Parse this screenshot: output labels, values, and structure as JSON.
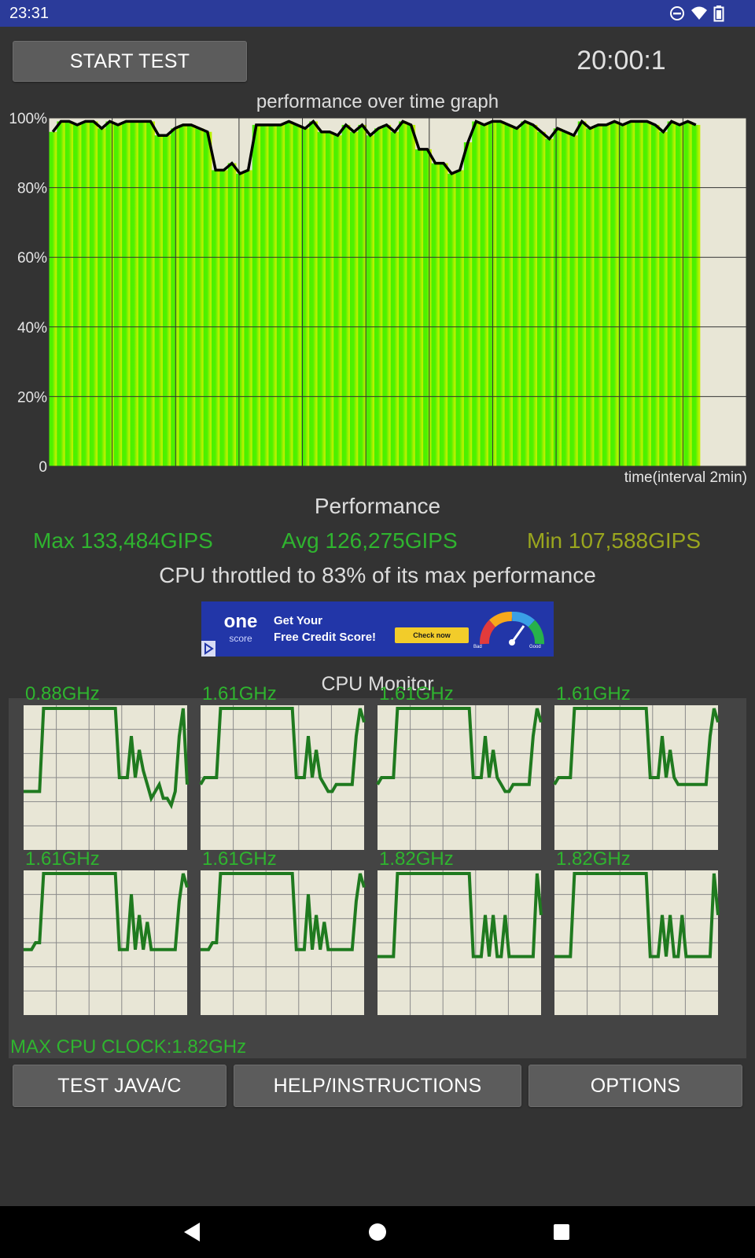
{
  "status_bar": {
    "time": "23:31",
    "icons": [
      "do-not-disturb-icon",
      "wifi-icon",
      "battery-icon"
    ]
  },
  "toolbar": {
    "start_label": "START TEST",
    "timer": "20:00:1"
  },
  "graph": {
    "title": "performance over time graph",
    "y_ticks": [
      "100%",
      "80%",
      "60%",
      "40%",
      "20%",
      "0"
    ],
    "x_label": "time(interval 2min)",
    "y_range": [
      0,
      100
    ],
    "samples": 80,
    "filled_samples": 80,
    "values": [
      96,
      99,
      99,
      98,
      99,
      99,
      97,
      99,
      98,
      99,
      99,
      99,
      99,
      95,
      95,
      97,
      98,
      98,
      97,
      96,
      85,
      85,
      87,
      84,
      85,
      98,
      98,
      98,
      98,
      99,
      98,
      97,
      99,
      96,
      96,
      95,
      98,
      96,
      98,
      95,
      97,
      98,
      96,
      99,
      98,
      91,
      91,
      87,
      87,
      84,
      85,
      93,
      99,
      98,
      99,
      99,
      98,
      97,
      99,
      98,
      96,
      94,
      97,
      96,
      95,
      99,
      97,
      98,
      98,
      99,
      98,
      99,
      99,
      99,
      98,
      96,
      99,
      98,
      99,
      98
    ]
  },
  "performance": {
    "heading": "Performance",
    "max": "Max 133,484GIPS",
    "avg": "Avg 126,275GIPS",
    "min": "Min 107,588GIPS",
    "throttle": "CPU throttled to 83% of its max performance"
  },
  "ad": {
    "brand": "one",
    "brand_sub": "score",
    "line1": "Get Your",
    "line2": "Free Credit Score!",
    "cta": "Check now",
    "gauge_left": "Bad",
    "gauge_right": "Good"
  },
  "cpu_monitor": {
    "heading": "CPU Monitor",
    "cores": [
      {
        "freq": "0.88GHz",
        "values": [
          0.4,
          0.4,
          0.4,
          0.4,
          0.4,
          1,
          1,
          1,
          1,
          1,
          1,
          1,
          1,
          1,
          1,
          1,
          1,
          1,
          1,
          1,
          1,
          1,
          1,
          1,
          0.5,
          0.5,
          0.5,
          0.8,
          0.5,
          0.7,
          0.55,
          0.45,
          0.35,
          0.4,
          0.45,
          0.35,
          0.35,
          0.3,
          0.4,
          0.8,
          1,
          0.45
        ]
      },
      {
        "freq": "1.61GHz",
        "values": [
          0.45,
          0.5,
          0.5,
          0.5,
          0.5,
          1,
          1,
          1,
          1,
          1,
          1,
          1,
          1,
          1,
          1,
          1,
          1,
          1,
          1,
          1,
          1,
          1,
          1,
          1,
          0.5,
          0.5,
          0.5,
          0.8,
          0.5,
          0.7,
          0.5,
          0.45,
          0.4,
          0.4,
          0.45,
          0.45,
          0.45,
          0.45,
          0.45,
          0.8,
          1,
          0.9
        ]
      },
      {
        "freq": "1.61GHz",
        "values": [
          0.45,
          0.5,
          0.5,
          0.5,
          0.5,
          1,
          1,
          1,
          1,
          1,
          1,
          1,
          1,
          1,
          1,
          1,
          1,
          1,
          1,
          1,
          1,
          1,
          1,
          1,
          0.5,
          0.5,
          0.5,
          0.8,
          0.5,
          0.7,
          0.5,
          0.45,
          0.4,
          0.4,
          0.45,
          0.45,
          0.45,
          0.45,
          0.45,
          0.8,
          1,
          0.9
        ]
      },
      {
        "freq": "1.61GHz",
        "values": [
          0.45,
          0.5,
          0.5,
          0.5,
          0.5,
          1,
          1,
          1,
          1,
          1,
          1,
          1,
          1,
          1,
          1,
          1,
          1,
          1,
          1,
          1,
          1,
          1,
          1,
          1,
          0.5,
          0.5,
          0.5,
          0.8,
          0.5,
          0.7,
          0.5,
          0.45,
          0.45,
          0.45,
          0.45,
          0.45,
          0.45,
          0.45,
          0.45,
          0.8,
          1,
          0.9
        ]
      },
      {
        "freq": "1.61GHz",
        "values": [
          0.45,
          0.45,
          0.45,
          0.5,
          0.5,
          1,
          1,
          1,
          1,
          1,
          1,
          1,
          1,
          1,
          1,
          1,
          1,
          1,
          1,
          1,
          1,
          1,
          1,
          1,
          0.45,
          0.45,
          0.45,
          0.85,
          0.45,
          0.7,
          0.45,
          0.65,
          0.45,
          0.45,
          0.45,
          0.45,
          0.45,
          0.45,
          0.45,
          0.8,
          1,
          0.9
        ]
      },
      {
        "freq": "1.61GHz",
        "values": [
          0.45,
          0.45,
          0.45,
          0.5,
          0.5,
          1,
          1,
          1,
          1,
          1,
          1,
          1,
          1,
          1,
          1,
          1,
          1,
          1,
          1,
          1,
          1,
          1,
          1,
          1,
          0.45,
          0.45,
          0.45,
          0.85,
          0.45,
          0.7,
          0.45,
          0.65,
          0.45,
          0.45,
          0.45,
          0.45,
          0.45,
          0.45,
          0.45,
          0.8,
          1,
          0.9
        ]
      },
      {
        "freq": "1.82GHz",
        "values": [
          0.4,
          0.4,
          0.4,
          0.4,
          0.4,
          1,
          1,
          1,
          1,
          1,
          1,
          1,
          1,
          1,
          1,
          1,
          1,
          1,
          1,
          1,
          1,
          1,
          1,
          1,
          0.4,
          0.4,
          0.4,
          0.7,
          0.4,
          0.7,
          0.4,
          0.4,
          0.7,
          0.4,
          0.4,
          0.4,
          0.4,
          0.4,
          0.4,
          0.4,
          1,
          0.7
        ]
      },
      {
        "freq": "1.82GHz",
        "values": [
          0.4,
          0.4,
          0.4,
          0.4,
          0.4,
          1,
          1,
          1,
          1,
          1,
          1,
          1,
          1,
          1,
          1,
          1,
          1,
          1,
          1,
          1,
          1,
          1,
          1,
          1,
          0.4,
          0.4,
          0.4,
          0.7,
          0.4,
          0.7,
          0.4,
          0.4,
          0.7,
          0.4,
          0.4,
          0.4,
          0.4,
          0.4,
          0.4,
          0.4,
          1,
          0.7
        ]
      }
    ],
    "max_clock": "MAX CPU CLOCK:1.82GHz"
  },
  "bottom_buttons": {
    "java_label": "TEST JAVA/C",
    "help_label": "HELP/INSTRUCTIONS",
    "options_label": "OPTIONS"
  },
  "navigation": {
    "icons": [
      "back-icon",
      "home-icon",
      "recents-icon"
    ]
  }
}
